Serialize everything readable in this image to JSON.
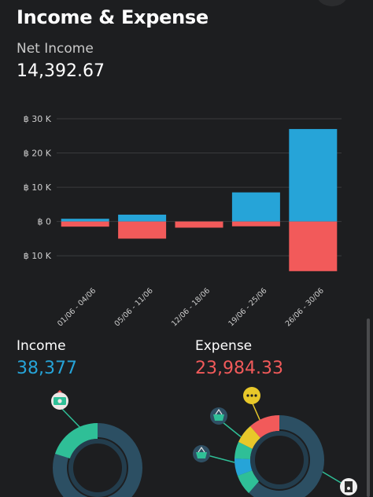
{
  "header": {
    "title": "Income & Expense"
  },
  "net_income": {
    "label": "Net Income",
    "value": "14,392.67"
  },
  "colors": {
    "income": "#26a4d8",
    "expense": "#f25a5a",
    "grid": "#3a3b3d"
  },
  "chart_data": {
    "type": "bar",
    "categories": [
      "01/06 - 04/06",
      "05/06 - 11/06",
      "12/06 - 18/06",
      "19/06 - 25/06",
      "26/06 - 30/06"
    ],
    "series": [
      {
        "values": [
          800,
          2000,
          0,
          8500,
          27000
        ]
      },
      {
        "values": [
          -1500,
          -5000,
          -1800,
          -1400,
          -14500
        ]
      }
    ],
    "y_ticks": [
      {
        "value": 30000,
        "label": "฿ 30 K"
      },
      {
        "value": 20000,
        "label": "฿ 20 K"
      },
      {
        "value": 10000,
        "label": "฿ 10 K"
      },
      {
        "value": 0,
        "label": "฿ 0"
      },
      {
        "value": -10000,
        "label": "฿ 10 K"
      }
    ],
    "ylim": [
      -15000,
      30000
    ],
    "grid": true
  },
  "income": {
    "label": "Income",
    "value": "38,377",
    "color": "#26a4d8"
  },
  "expense": {
    "label": "Expense",
    "value": "23,984.33",
    "color": "#f25a5a"
  },
  "icons": {
    "income_category": "cash-icon",
    "expense_categories": [
      "more-dots-icon",
      "shopping-basket-icon",
      "shopping-basket-icon",
      "receipt-icon"
    ]
  }
}
